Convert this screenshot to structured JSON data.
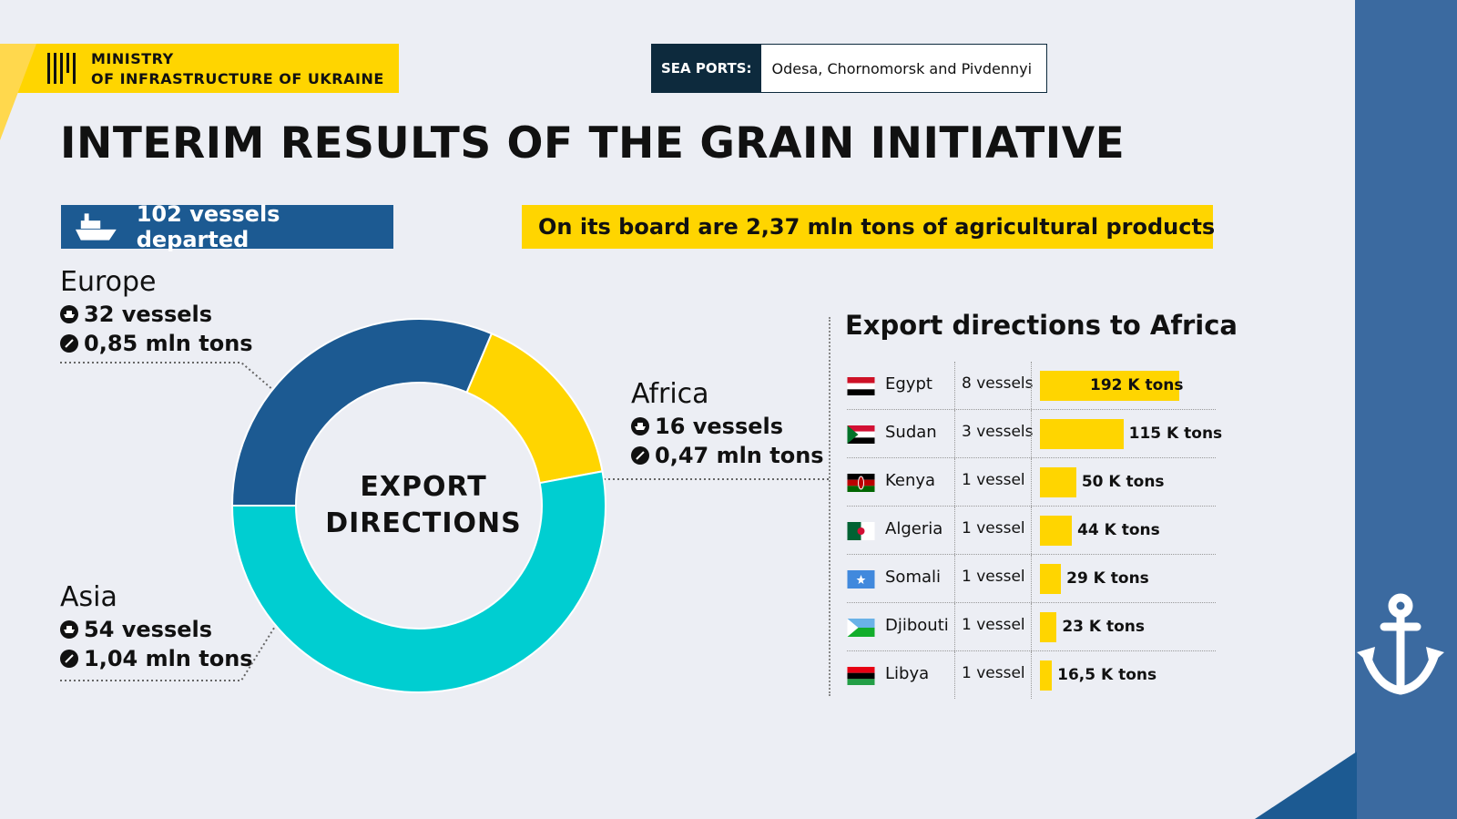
{
  "header": {
    "ministry_line1": "MINISTRY",
    "ministry_line2": "OF INFRASTRUCTURE OF UKRAINE",
    "sea_ports_label": "SEA PORTS:",
    "sea_ports_value": "Odesa, Chornomorsk and Pivdennyi",
    "title": "INTERIM RESULTS OF THE GRAIN INITIATIVE"
  },
  "summary": {
    "vessels": "102 vessels departed",
    "board": "On its board are 2,37 mln tons of agricultural products"
  },
  "regions": {
    "europe": {
      "name": "Europe",
      "vessels": "32 vessels",
      "tons": "0,85 mln tons"
    },
    "africa": {
      "name": "Africa",
      "vessels": "16 vessels",
      "tons": "0,47 mln tons"
    },
    "asia": {
      "name": "Asia",
      "vessels": "54 vessels",
      "tons": "1,04 mln tons"
    }
  },
  "donut_center": {
    "line1": "EXPORT",
    "line2": "DIRECTIONS"
  },
  "colors": {
    "europe": "#1c5a92",
    "africa": "#ffd500",
    "asia": "#00ced1",
    "accent": "#ffd500",
    "navy": "#0d2a3d"
  },
  "chart_data": [
    {
      "type": "pie",
      "variant": "donut",
      "title": "EXPORT DIRECTIONS",
      "categories": [
        "Europe",
        "Africa",
        "Asia"
      ],
      "vessels": [
        32,
        16,
        54
      ],
      "values": [
        0.85,
        0.47,
        1.04
      ],
      "units": "mln tons"
    },
    {
      "type": "bar",
      "orientation": "horizontal",
      "title": "Export directions to Africa",
      "categories": [
        "Egypt",
        "Sudan",
        "Kenya",
        "Algeria",
        "Somali",
        "Djibouti",
        "Libya"
      ],
      "vessels": [
        "8 vessels",
        "3 vessels",
        "1 vessel",
        "1 vessel",
        "1 vessel",
        "1 vessel",
        "1 vessel"
      ],
      "values": [
        192,
        115,
        50,
        44,
        29,
        23,
        16.5
      ],
      "labels": [
        "192 K tons",
        "115 K tons",
        "50 K tons",
        "44 K tons",
        "29 K tons",
        "23 K tons",
        "16,5 K tons"
      ],
      "units": "K tons"
    }
  ]
}
